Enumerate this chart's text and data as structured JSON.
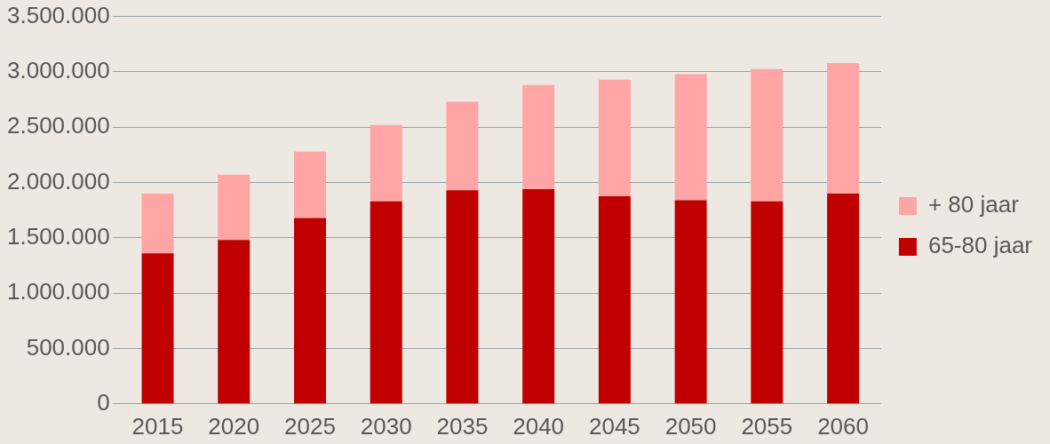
{
  "chart_data": {
    "type": "bar",
    "stacked": true,
    "categories": [
      "2015",
      "2020",
      "2025",
      "2030",
      "2035",
      "2040",
      "2045",
      "2050",
      "2055",
      "2060"
    ],
    "series": [
      {
        "name": "65-80 jaar",
        "color": "#c00000",
        "values": [
          1360000,
          1480000,
          1680000,
          1830000,
          1930000,
          1940000,
          1875000,
          1840000,
          1830000,
          1900000
        ]
      },
      {
        "name": "+ 80 jaar",
        "color": "#ffa5a5",
        "values": [
          540000,
          590000,
          600000,
          690000,
          800000,
          940000,
          1055000,
          1140000,
          1195000,
          1180000
        ]
      }
    ],
    "ylim": [
      0,
      3500000
    ],
    "yticks": [
      {
        "value": 0,
        "label": "0"
      },
      {
        "value": 500000,
        "label": "500.000"
      },
      {
        "value": 1000000,
        "label": "1.000.000"
      },
      {
        "value": 1500000,
        "label": "1.500.000"
      },
      {
        "value": 2000000,
        "label": "2.000.000"
      },
      {
        "value": 2500000,
        "label": "2.500.000"
      },
      {
        "value": 3000000,
        "label": "3.000.000"
      },
      {
        "value": 3500000,
        "label": "3.500.000"
      }
    ],
    "grid": "y",
    "legend": "right"
  }
}
